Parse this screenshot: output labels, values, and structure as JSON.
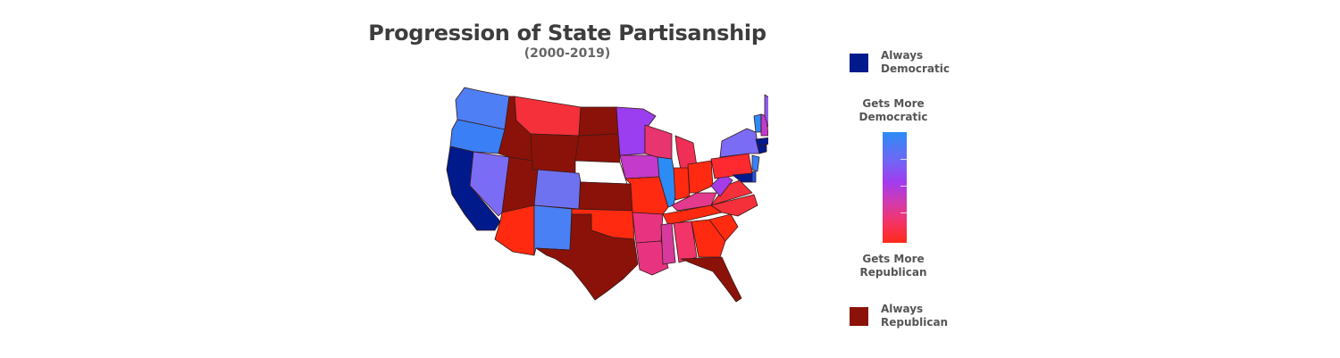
{
  "title": "Progression of State Partisanship",
  "subtitle": "(2000-2019)",
  "legend": {
    "always_dem": {
      "label_line1": "Always",
      "label_line2": "Democratic",
      "color": "#001a8c"
    },
    "more_dem": {
      "label_line1": "Gets More",
      "label_line2": "Democratic",
      "color": "#2b8cf5"
    },
    "more_rep": {
      "label_line1": "Gets More",
      "label_line2": "Republican",
      "color": "#ff2a1a"
    },
    "always_rep": {
      "label_line1": "Always",
      "label_line2": "Republican",
      "color": "#8b1208"
    }
  },
  "map_data": {
    "type": "choropleth",
    "unit": "US state",
    "scale": [
      "Always Democratic",
      "Gets More Democratic",
      "Gets More Republican",
      "Always Republican"
    ]
  }
}
